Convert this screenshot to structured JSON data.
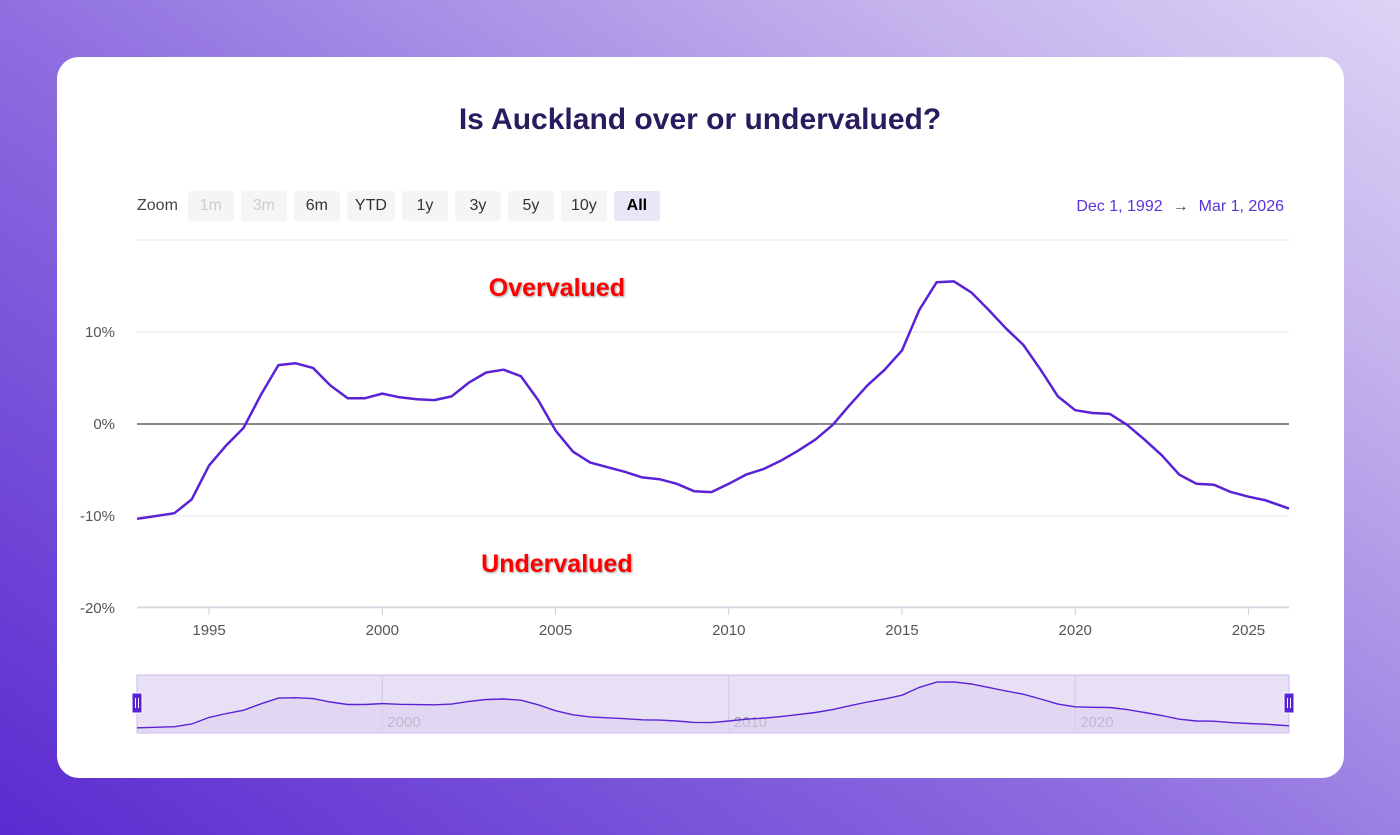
{
  "title": "Is Auckland over or undervalued?",
  "zoom": {
    "label": "Zoom",
    "buttons": [
      {
        "label": "1m",
        "state": "disabled"
      },
      {
        "label": "3m",
        "state": "disabled"
      },
      {
        "label": "6m",
        "state": "normal"
      },
      {
        "label": "YTD",
        "state": "normal"
      },
      {
        "label": "1y",
        "state": "normal"
      },
      {
        "label": "3y",
        "state": "normal"
      },
      {
        "label": "5y",
        "state": "normal"
      },
      {
        "label": "10y",
        "state": "normal"
      },
      {
        "label": "All",
        "state": "active"
      }
    ]
  },
  "range": {
    "from": "Dec 1, 1992",
    "arrow": "→",
    "to": "Mar 1, 2026"
  },
  "chart_data": {
    "type": "line",
    "title": "Is Auckland over or undervalued?",
    "xlim": [
      1992.92,
      2026.17
    ],
    "ylim": [
      -20,
      20
    ],
    "yticks": [
      {
        "v": 10,
        "label": "10%"
      },
      {
        "v": 0,
        "label": "0%"
      },
      {
        "v": -10,
        "label": "-10%"
      },
      {
        "v": -20,
        "label": "-20%"
      }
    ],
    "xticks": [
      1995,
      2000,
      2005,
      2010,
      2015,
      2020,
      2025
    ],
    "navigator_ticks": [
      2000,
      2010,
      2020
    ],
    "annotations": [
      {
        "text": "Overvalued",
        "x": 2004,
        "y": 15
      },
      {
        "text": "Undervalued",
        "x": 2004,
        "y": -15
      }
    ],
    "line_color": "#5a22d6",
    "grid": true,
    "x": [
      1992.92,
      1993.3,
      1994,
      1994.5,
      1995,
      1995.5,
      1996,
      1996.5,
      1997,
      1997.5,
      1998,
      1998.5,
      1999,
      1999.5,
      2000,
      2000.5,
      2001,
      2001.5,
      2002,
      2002.5,
      2003,
      2003.5,
      2004,
      2004.5,
      2005,
      2005.5,
      2006,
      2006.5,
      2007,
      2007.5,
      2008,
      2008.5,
      2009,
      2009.5,
      2010,
      2010.5,
      2011,
      2011.5,
      2012,
      2012.5,
      2013,
      2013.5,
      2014,
      2014.5,
      2015,
      2015.5,
      2016,
      2016.5,
      2017,
      2017.5,
      2018,
      2018.5,
      2019,
      2019.5,
      2020,
      2020.5,
      2021,
      2021.5,
      2022,
      2022.5,
      2023,
      2023.5,
      2024,
      2024.5,
      2025,
      2025.5,
      2026.17
    ],
    "y": [
      -10.3,
      -10.1,
      -9.7,
      -8.2,
      -4.5,
      -2.3,
      -0.4,
      3.2,
      6.4,
      6.6,
      6.1,
      4.2,
      2.8,
      2.8,
      3.3,
      2.9,
      2.7,
      2.6,
      3.0,
      4.5,
      5.6,
      5.9,
      5.2,
      2.6,
      -0.7,
      -3,
      -4.2,
      -4.7,
      -5.2,
      -5.8,
      -6,
      -6.5,
      -7.3,
      -7.4,
      -6.5,
      -5.5,
      -4.9,
      -4,
      -2.9,
      -1.7,
      -0.1,
      2.1,
      4.2,
      5.9,
      8,
      12.4,
      15.4,
      15.5,
      14.3,
      12.4,
      10.4,
      8.6,
      5.9,
      3,
      1.5,
      1.2,
      1.1,
      -0.1,
      -1.7,
      -3.4,
      -5.5,
      -6.5,
      -6.6,
      -7.4,
      -7.9,
      -8.3,
      -9.2
    ]
  }
}
